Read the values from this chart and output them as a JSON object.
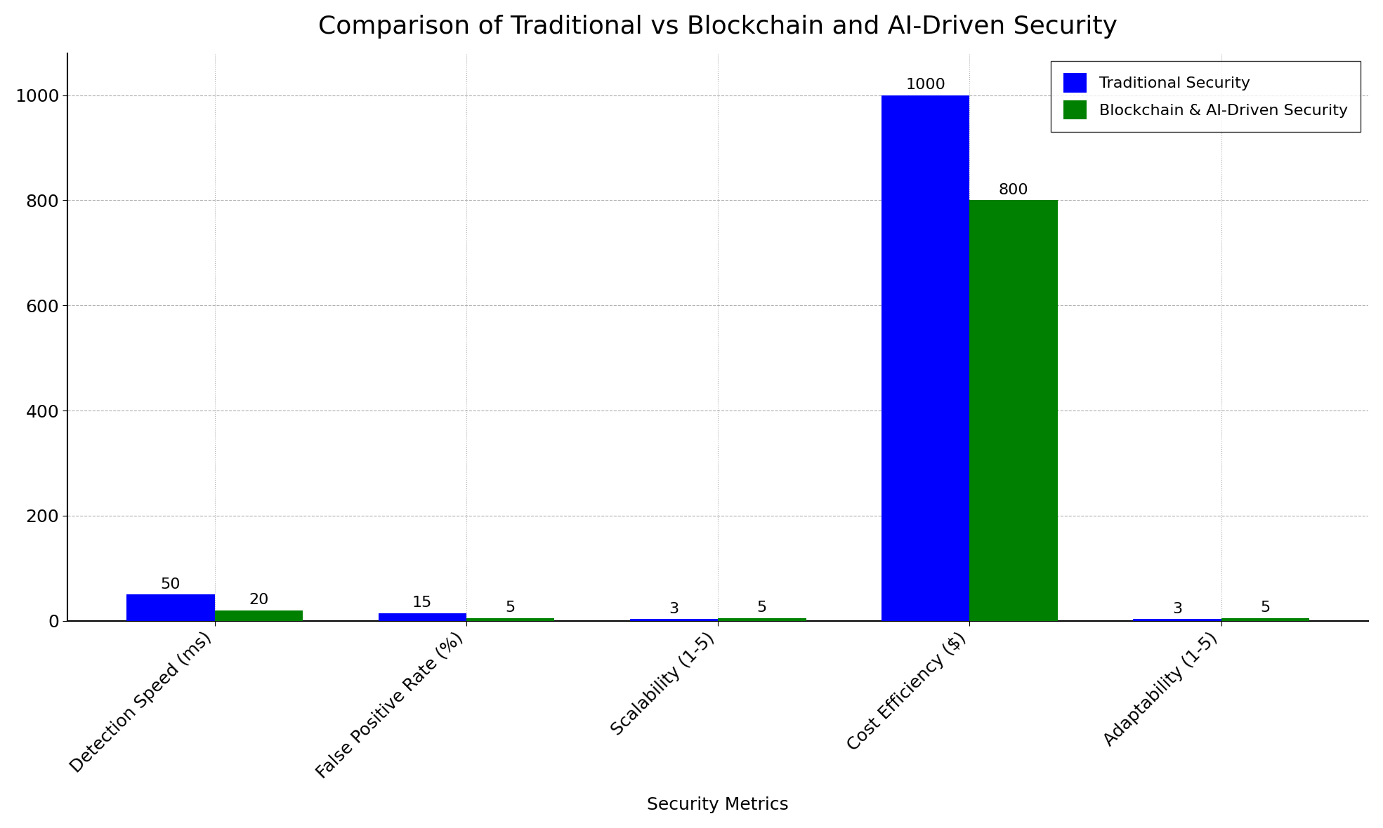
{
  "title": "Comparison of Traditional vs Blockchain and AI-Driven Security",
  "xlabel": "Security Metrics",
  "categories": [
    "Detection Speed (ms)",
    "False Positive Rate (%)",
    "Scalability (1-5)",
    "Cost Efficiency ($)",
    "Adaptability (1-5)"
  ],
  "traditional": [
    50,
    15,
    3,
    1000,
    3
  ],
  "blockchain_ai": [
    20,
    5,
    5,
    800,
    5
  ],
  "traditional_color": "#0000ff",
  "blockchain_color": "#008000",
  "traditional_label": "Traditional Security",
  "blockchain_label": "Blockchain & AI-Driven Security",
  "bar_width": 0.35,
  "title_fontsize": 26,
  "label_fontsize": 18,
  "tick_fontsize": 18,
  "value_fontsize": 16,
  "legend_fontsize": 16,
  "background_color": "#ffffff",
  "grid_color": "#b0b0b0",
  "ylim": [
    0,
    1080
  ]
}
